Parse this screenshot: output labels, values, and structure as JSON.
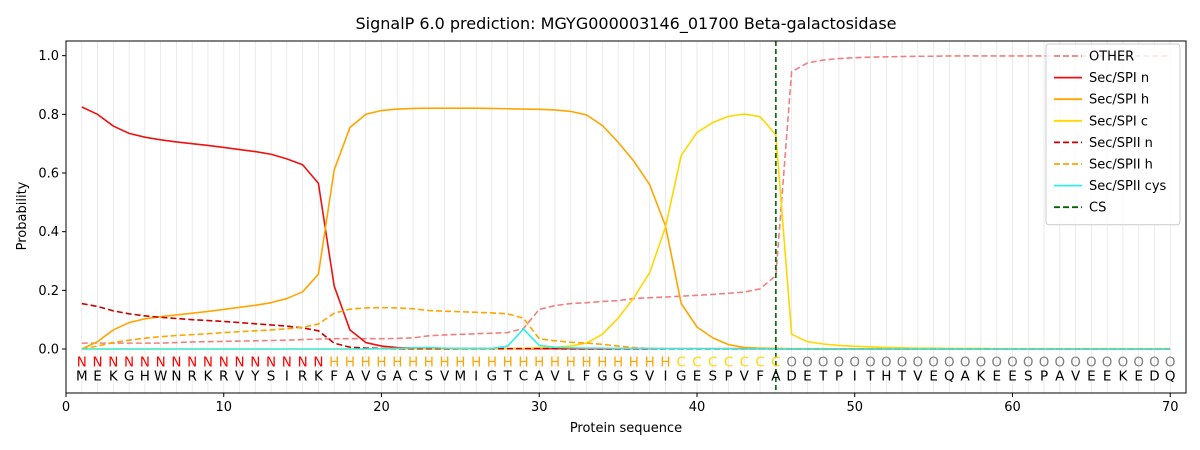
{
  "chart_data": {
    "type": "line",
    "title": "SignalP 6.0 prediction: MGYG000003146_01700 Beta-galactosidase",
    "xlabel": "Protein sequence",
    "ylabel": "Probability",
    "xlim": [
      0,
      71
    ],
    "ylim": [
      -0.15,
      1.05
    ],
    "x_ticks": [
      0,
      10,
      20,
      30,
      40,
      50,
      60,
      70
    ],
    "y_ticks": [
      0.0,
      0.2,
      0.4,
      0.6,
      0.8,
      1.0
    ],
    "x_tick_labels": [
      "0",
      "10",
      "20",
      "30",
      "40",
      "50",
      "60",
      "70"
    ],
    "y_tick_labels": [
      "0.0",
      "0.2",
      "0.4",
      "0.6",
      "0.8",
      "1.0"
    ],
    "grid": "vertical lines at each residue",
    "legend_position": "top-right",
    "sequence": [
      "M",
      "E",
      "K",
      "G",
      "H",
      "W",
      "N",
      "R",
      "K",
      "R",
      "V",
      "Y",
      "S",
      "I",
      "R",
      "K",
      "F",
      "A",
      "V",
      "G",
      "A",
      "C",
      "S",
      "V",
      "M",
      "I",
      "G",
      "T",
      "C",
      "A",
      "V",
      "L",
      "F",
      "G",
      "G",
      "S",
      "V",
      "I",
      "G",
      "E",
      "S",
      "P",
      "V",
      "F",
      "A",
      "D",
      "E",
      "T",
      "P",
      "I",
      "T",
      "H",
      "T",
      "V",
      "E",
      "Q",
      "A",
      "K",
      "E",
      "E",
      "S",
      "P",
      "A",
      "V",
      "E",
      "E",
      "K",
      "E",
      "D",
      "Q"
    ],
    "region_labels": [
      "N",
      "N",
      "N",
      "N",
      "N",
      "N",
      "N",
      "N",
      "N",
      "N",
      "N",
      "N",
      "N",
      "N",
      "N",
      "N",
      "H",
      "H",
      "H",
      "H",
      "H",
      "H",
      "H",
      "H",
      "H",
      "H",
      "H",
      "H",
      "H",
      "H",
      "H",
      "H",
      "H",
      "H",
      "H",
      "H",
      "H",
      "H",
      "C",
      "C",
      "C",
      "C",
      "C",
      "C",
      "C",
      "O",
      "O",
      "O",
      "O",
      "O",
      "O",
      "O",
      "O",
      "O",
      "O",
      "O",
      "O",
      "O",
      "O",
      "O",
      "O",
      "O",
      "O",
      "O",
      "O",
      "O",
      "O",
      "O",
      "O",
      "O"
    ],
    "region_colors": {
      "N": "#ff0000",
      "H": "#ffa500",
      "C": "#ffd700",
      "O": "#808080"
    },
    "cleavage_site": 45,
    "series": [
      {
        "name": "OTHER",
        "color": "#f08080",
        "dash": "dashed",
        "values": [
          0.02,
          0.02,
          0.02,
          0.02,
          0.02,
          0.02,
          0.022,
          0.024,
          0.025,
          0.026,
          0.027,
          0.028,
          0.029,
          0.03,
          0.032,
          0.034,
          0.035,
          0.035,
          0.035,
          0.035,
          0.036,
          0.038,
          0.045,
          0.048,
          0.05,
          0.052,
          0.054,
          0.056,
          0.07,
          0.135,
          0.148,
          0.155,
          0.158,
          0.162,
          0.165,
          0.172,
          0.175,
          0.177,
          0.18,
          0.183,
          0.186,
          0.19,
          0.194,
          0.205,
          0.25,
          0.945,
          0.975,
          0.985,
          0.99,
          0.993,
          0.995,
          0.996,
          0.997,
          0.998,
          0.998,
          0.999,
          0.999,
          0.999,
          0.999,
          0.999,
          0.999,
          0.999,
          0.999,
          0.999,
          0.999,
          0.999,
          0.999,
          0.999,
          0.999,
          0.999
        ]
      },
      {
        "name": "Sec/SPI n",
        "color": "#ee1111",
        "dash": "solid",
        "values": [
          0.825,
          0.8,
          0.76,
          0.735,
          0.722,
          0.713,
          0.706,
          0.7,
          0.694,
          0.687,
          0.68,
          0.673,
          0.664,
          0.648,
          0.628,
          0.565,
          0.215,
          0.065,
          0.022,
          0.01,
          0.005,
          0.003,
          0.002,
          0.002,
          0.001,
          0.001,
          0.001,
          0.001,
          0.001,
          0.001,
          0.001,
          0.001,
          0.001,
          0.001,
          0.001,
          0.001,
          0.001,
          0.001,
          0.001,
          0.001,
          0.001,
          0.001,
          0.001,
          0.001,
          0.001,
          0.0,
          0.0,
          0.0,
          0.0,
          0.0,
          0.0,
          0.0,
          0.0,
          0.0,
          0.0,
          0.0,
          0.0,
          0.0,
          0.0,
          0.0,
          0.0,
          0.0,
          0.0,
          0.0,
          0.0,
          0.0,
          0.0,
          0.0,
          0.0,
          0.0
        ]
      },
      {
        "name": "Sec/SPI h",
        "color": "#ffa500",
        "dash": "solid",
        "values": [
          0.0,
          0.025,
          0.065,
          0.09,
          0.103,
          0.11,
          0.116,
          0.122,
          0.128,
          0.135,
          0.142,
          0.149,
          0.158,
          0.172,
          0.195,
          0.255,
          0.61,
          0.755,
          0.8,
          0.813,
          0.818,
          0.82,
          0.821,
          0.821,
          0.821,
          0.821,
          0.82,
          0.819,
          0.818,
          0.817,
          0.815,
          0.81,
          0.798,
          0.762,
          0.705,
          0.64,
          0.56,
          0.42,
          0.155,
          0.075,
          0.038,
          0.015,
          0.005,
          0.003,
          0.002,
          0.001,
          0.001,
          0.001,
          0.0,
          0.0,
          0.0,
          0.0,
          0.0,
          0.0,
          0.0,
          0.0,
          0.0,
          0.0,
          0.0,
          0.0,
          0.0,
          0.0,
          0.0,
          0.0,
          0.0,
          0.0,
          0.0,
          0.0,
          0.0,
          0.0
        ]
      },
      {
        "name": "Sec/SPI c",
        "color": "#ffd700",
        "dash": "solid",
        "values": [
          0.0,
          0.0,
          0.0,
          0.0,
          0.0,
          0.0,
          0.0,
          0.0,
          0.0,
          0.0,
          0.0,
          0.0,
          0.0,
          0.0,
          0.0,
          0.0,
          0.0,
          0.0,
          0.0,
          0.0,
          0.0,
          0.0,
          0.0,
          0.0,
          0.0,
          0.0,
          0.0,
          0.001,
          0.002,
          0.004,
          0.006,
          0.01,
          0.02,
          0.05,
          0.105,
          0.175,
          0.26,
          0.415,
          0.66,
          0.738,
          0.772,
          0.793,
          0.801,
          0.792,
          0.73,
          0.05,
          0.025,
          0.017,
          0.012,
          0.009,
          0.007,
          0.005,
          0.004,
          0.003,
          0.003,
          0.002,
          0.002,
          0.002,
          0.001,
          0.001,
          0.001,
          0.001,
          0.001,
          0.001,
          0.001,
          0.001,
          0.001,
          0.001,
          0.001,
          0.001
        ]
      },
      {
        "name": "Sec/SPII n",
        "color": "#cc0000",
        "dash": "dashed",
        "values": [
          0.155,
          0.145,
          0.13,
          0.12,
          0.113,
          0.108,
          0.104,
          0.1,
          0.097,
          0.094,
          0.09,
          0.086,
          0.082,
          0.078,
          0.072,
          0.062,
          0.02,
          0.006,
          0.003,
          0.002,
          0.001,
          0.001,
          0.001,
          0.001,
          0.001,
          0.001,
          0.001,
          0.001,
          0.001,
          0.001,
          0.001,
          0.0,
          0.0,
          0.0,
          0.0,
          0.0,
          0.0,
          0.0,
          0.0,
          0.0,
          0.0,
          0.0,
          0.0,
          0.0,
          0.0,
          0.0,
          0.0,
          0.0,
          0.0,
          0.0,
          0.0,
          0.0,
          0.0,
          0.0,
          0.0,
          0.0,
          0.0,
          0.0,
          0.0,
          0.0,
          0.0,
          0.0,
          0.0,
          0.0,
          0.0,
          0.0,
          0.0,
          0.0,
          0.0,
          0.0
        ]
      },
      {
        "name": "Sec/SPII h",
        "color": "#ffa500",
        "dash": "dashed",
        "values": [
          0.0,
          0.01,
          0.022,
          0.03,
          0.037,
          0.042,
          0.046,
          0.049,
          0.052,
          0.056,
          0.059,
          0.062,
          0.065,
          0.069,
          0.074,
          0.085,
          0.122,
          0.136,
          0.14,
          0.141,
          0.14,
          0.137,
          0.131,
          0.129,
          0.127,
          0.125,
          0.123,
          0.12,
          0.105,
          0.035,
          0.028,
          0.023,
          0.02,
          0.016,
          0.01,
          0.005,
          0.002,
          0.001,
          0.0,
          0.0,
          0.0,
          0.0,
          0.0,
          0.0,
          0.0,
          0.0,
          0.0,
          0.0,
          0.0,
          0.0,
          0.0,
          0.0,
          0.0,
          0.0,
          0.0,
          0.0,
          0.0,
          0.0,
          0.0,
          0.0,
          0.0,
          0.0,
          0.0,
          0.0,
          0.0,
          0.0,
          0.0,
          0.0,
          0.0,
          0.0
        ]
      },
      {
        "name": "Sec/SPII cys",
        "color": "#33eeee",
        "dash": "solid",
        "values": [
          0.0,
          0.0,
          0.0,
          0.0,
          0.0,
          0.0,
          0.0,
          0.0,
          0.0,
          0.0,
          0.0,
          0.0,
          0.0,
          0.0,
          0.0,
          0.0,
          0.0,
          0.0,
          0.0,
          0.001,
          0.002,
          0.004,
          0.005,
          0.003,
          0.002,
          0.002,
          0.002,
          0.01,
          0.068,
          0.012,
          0.006,
          0.004,
          0.003,
          0.003,
          0.002,
          0.002,
          0.002,
          0.001,
          0.001,
          0.001,
          0.001,
          0.001,
          0.0,
          0.0,
          0.0,
          0.0,
          0.0,
          0.0,
          0.0,
          0.0,
          0.0,
          0.0,
          0.0,
          0.0,
          0.0,
          0.0,
          0.0,
          0.0,
          0.0,
          0.0,
          0.0,
          0.0,
          0.0,
          0.0,
          0.0,
          0.0,
          0.0,
          0.0,
          0.0,
          0.0
        ]
      }
    ],
    "cs_legend": {
      "name": "CS",
      "color": "#006400",
      "dash": "dashed"
    }
  }
}
